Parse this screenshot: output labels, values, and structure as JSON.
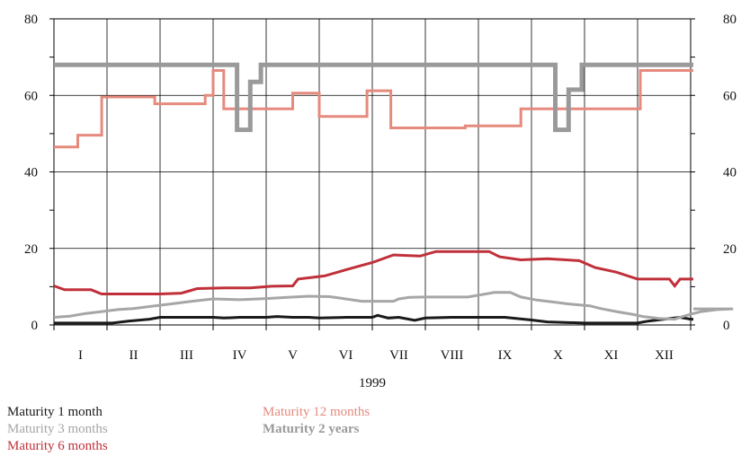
{
  "chart_data": {
    "type": "line",
    "step": true,
    "year_label": "1999",
    "months": [
      "I",
      "II",
      "III",
      "IV",
      "V",
      "VI",
      "VII",
      "VIII",
      "IX",
      "X",
      "XI",
      "XII"
    ],
    "ylim": [
      0,
      80
    ],
    "yticks": [
      0,
      20,
      40,
      60,
      80
    ],
    "grid": true,
    "legend_placement": "bottom",
    "series": [
      {
        "name": "Maturity 1 month",
        "color": "#1a1a1a",
        "width": 3,
        "points": [
          [
            0,
            0.5
          ],
          [
            1,
            0.5
          ],
          [
            1.1,
            0.5
          ],
          [
            1.4,
            1
          ],
          [
            1.8,
            1.5
          ],
          [
            2.0,
            2
          ],
          [
            3.0,
            2
          ],
          [
            3.2,
            1.8
          ],
          [
            3.5,
            2
          ],
          [
            4.0,
            2
          ],
          [
            4.2,
            2.2
          ],
          [
            4.5,
            2
          ],
          [
            4.8,
            2
          ],
          [
            5,
            1.8
          ],
          [
            5.5,
            2
          ],
          [
            6.0,
            2
          ],
          [
            6.1,
            2.5
          ],
          [
            6.3,
            1.8
          ],
          [
            6.5,
            2
          ],
          [
            6.8,
            1.2
          ],
          [
            7,
            1.8
          ],
          [
            7.5,
            2
          ],
          [
            8.0,
            2
          ],
          [
            8.5,
            2
          ],
          [
            9.0,
            1.3
          ],
          [
            9.3,
            0.8
          ],
          [
            10.0,
            0.5
          ],
          [
            10.5,
            0.5
          ],
          [
            11.0,
            0.5
          ],
          [
            11.2,
            1
          ],
          [
            11.5,
            1.5
          ],
          [
            11.8,
            2
          ],
          [
            12.0,
            1.5
          ],
          [
            12.05,
            1.5
          ]
        ]
      },
      {
        "name": "Maturity 3 months",
        "color": "#a6a6a6",
        "width": 3,
        "points": [
          [
            0,
            2
          ],
          [
            0.3,
            2.3
          ],
          [
            0.6,
            3
          ],
          [
            0.9,
            3.5
          ],
          [
            1.2,
            4
          ],
          [
            1.5,
            4.3
          ],
          [
            1.8,
            4.8
          ],
          [
            2.2,
            5.5
          ],
          [
            2.6,
            6.2
          ],
          [
            3.0,
            6.8
          ],
          [
            3.5,
            6.6
          ],
          [
            4.0,
            6.9
          ],
          [
            4.4,
            7.2
          ],
          [
            4.8,
            7.5
          ],
          [
            5.2,
            7.4
          ],
          [
            5.5,
            6.8
          ],
          [
            5.8,
            6.2
          ],
          [
            6.4,
            6.2
          ],
          [
            6.5,
            6.8
          ],
          [
            6.7,
            7.2
          ],
          [
            7.0,
            7.3
          ],
          [
            7.8,
            7.3
          ],
          [
            8.1,
            8
          ],
          [
            8.3,
            8.5
          ],
          [
            8.6,
            8.5
          ],
          [
            8.8,
            7.3
          ],
          [
            9.1,
            6.5
          ],
          [
            9.4,
            6
          ],
          [
            9.7,
            5.5
          ],
          [
            10.1,
            5
          ],
          [
            10.3,
            4.3
          ],
          [
            10.6,
            3.5
          ],
          [
            10.9,
            2.8
          ],
          [
            11.1,
            2.2
          ],
          [
            11.4,
            1.7
          ],
          [
            11.7,
            1.5
          ],
          [
            11.85,
            2.2
          ],
          [
            12.0,
            2.8
          ],
          [
            12.2,
            3.5
          ],
          [
            12.5,
            4
          ],
          [
            12.8,
            4.2
          ],
          [
            12.05,
            4.2
          ]
        ]
      },
      {
        "name": "Maturity 6 months",
        "color": "#c0303a",
        "width": 3,
        "points": [
          [
            0,
            10.2
          ],
          [
            0.2,
            9.2
          ],
          [
            0.7,
            9.2
          ],
          [
            0.9,
            8.1
          ],
          [
            2.0,
            8.1
          ],
          [
            2.4,
            8.3
          ],
          [
            2.7,
            9.5
          ],
          [
            3.2,
            9.7
          ],
          [
            3.7,
            9.7
          ],
          [
            4.1,
            10.1
          ],
          [
            4.5,
            10.2
          ],
          [
            4.6,
            12
          ],
          [
            5.1,
            12.8
          ],
          [
            5.6,
            14.8
          ],
          [
            6.0,
            16.3
          ],
          [
            6.4,
            18.3
          ],
          [
            6.9,
            18
          ],
          [
            7.2,
            19.2
          ],
          [
            8.2,
            19.2
          ],
          [
            8.4,
            17.8
          ],
          [
            8.8,
            17
          ],
          [
            9.3,
            17.3
          ],
          [
            9.9,
            16.8
          ],
          [
            10.2,
            15
          ],
          [
            10.6,
            13.8
          ],
          [
            11.0,
            12
          ],
          [
            11.6,
            12
          ],
          [
            11.7,
            10.2
          ],
          [
            11.8,
            12
          ],
          [
            12.05,
            12
          ]
        ]
      },
      {
        "name": "Maturity 12 months",
        "color": "#e58a7d",
        "width": 3,
        "points": [
          [
            0,
            46.5
          ],
          [
            0.45,
            46.5
          ],
          [
            0.45,
            49.6
          ],
          [
            0.9,
            49.6
          ],
          [
            0.9,
            59.6
          ],
          [
            1.9,
            59.6
          ],
          [
            1.9,
            57.8
          ],
          [
            2.85,
            57.8
          ],
          [
            2.85,
            60
          ],
          [
            3.0,
            60
          ],
          [
            3.0,
            66.5
          ],
          [
            3.2,
            66.5
          ],
          [
            3.2,
            56.5
          ],
          [
            4.5,
            56.5
          ],
          [
            4.5,
            60.6
          ],
          [
            5.0,
            60.6
          ],
          [
            5.0,
            54.5
          ],
          [
            5.9,
            54.5
          ],
          [
            5.9,
            61.2
          ],
          [
            6.35,
            61.2
          ],
          [
            6.35,
            51.5
          ],
          [
            7.75,
            51.5
          ],
          [
            7.75,
            52
          ],
          [
            8.8,
            52
          ],
          [
            8.8,
            56.5
          ],
          [
            11.05,
            56.5
          ],
          [
            11.05,
            66.5
          ],
          [
            12.05,
            66.5
          ]
        ]
      },
      {
        "name": "Maturity 2 years",
        "color": "#9a9a9a",
        "width": 5,
        "points": [
          [
            0,
            68
          ],
          [
            3.45,
            68
          ],
          [
            3.45,
            51
          ],
          [
            3.7,
            51
          ],
          [
            3.7,
            63.5
          ],
          [
            3.9,
            63.5
          ],
          [
            3.9,
            68
          ],
          [
            9.45,
            68
          ],
          [
            9.45,
            51
          ],
          [
            9.7,
            51
          ],
          [
            9.7,
            61.5
          ],
          [
            9.95,
            61.5
          ],
          [
            9.95,
            68
          ],
          [
            12.05,
            68
          ]
        ]
      }
    ]
  },
  "legend": {
    "left": [
      {
        "label": "Maturity 1 month",
        "color": "#1a1a1a",
        "bold": false
      },
      {
        "label": "Maturity 3 months",
        "color": "#a6a6a6",
        "bold": false
      },
      {
        "label": "Maturity 6 months",
        "color": "#c0303a",
        "bold": false
      }
    ],
    "right": [
      {
        "label": "Maturity 12 months",
        "color": "#e58a7d",
        "bold": false
      },
      {
        "label": "Maturity 2 years",
        "color": "#9a9a9a",
        "bold": true
      }
    ]
  }
}
